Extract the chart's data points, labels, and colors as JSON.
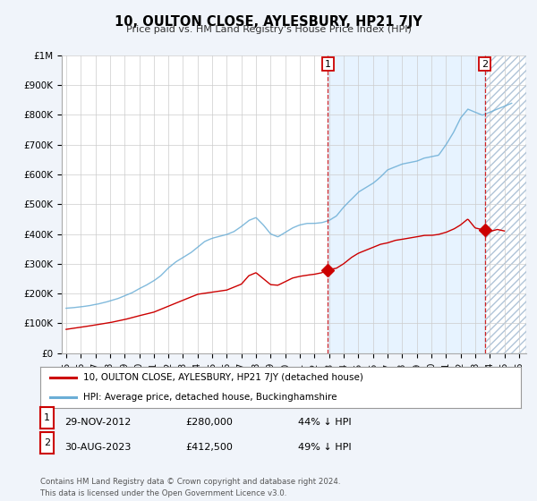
{
  "title": "10, OULTON CLOSE, AYLESBURY, HP21 7JY",
  "subtitle": "Price paid vs. HM Land Registry's House Price Index (HPI)",
  "hpi_label": "HPI: Average price, detached house, Buckinghamshire",
  "price_label": "10, OULTON CLOSE, AYLESBURY, HP21 7JY (detached house)",
  "hpi_color": "#6baed6",
  "price_color": "#cc0000",
  "sale1_date": "29-NOV-2012",
  "sale1_price": "£280,000",
  "sale1_note": "44% ↓ HPI",
  "sale2_date": "30-AUG-2023",
  "sale2_price": "£412,500",
  "sale2_note": "49% ↓ HPI",
  "footer": "Contains HM Land Registry data © Crown copyright and database right 2024.\nThis data is licensed under the Open Government Licence v3.0.",
  "ylim": [
    0,
    1000000
  ],
  "yticks": [
    0,
    100000,
    200000,
    300000,
    400000,
    500000,
    600000,
    700000,
    800000,
    900000,
    1000000
  ],
  "ytick_labels": [
    "£0",
    "£100K",
    "£200K",
    "£300K",
    "£400K",
    "£500K",
    "£600K",
    "£700K",
    "£800K",
    "£900K",
    "£1M"
  ],
  "background_color": "#f0f4fa",
  "plot_bg_color": "#ffffff",
  "sale1_x": 2012.92,
  "sale1_y": 280000,
  "sale2_x": 2023.67,
  "sale2_y": 412500,
  "xmin": 1995,
  "xmax": 2026,
  "shade_between_color": "#ddeeff",
  "hatch_color": "#aabbcc"
}
